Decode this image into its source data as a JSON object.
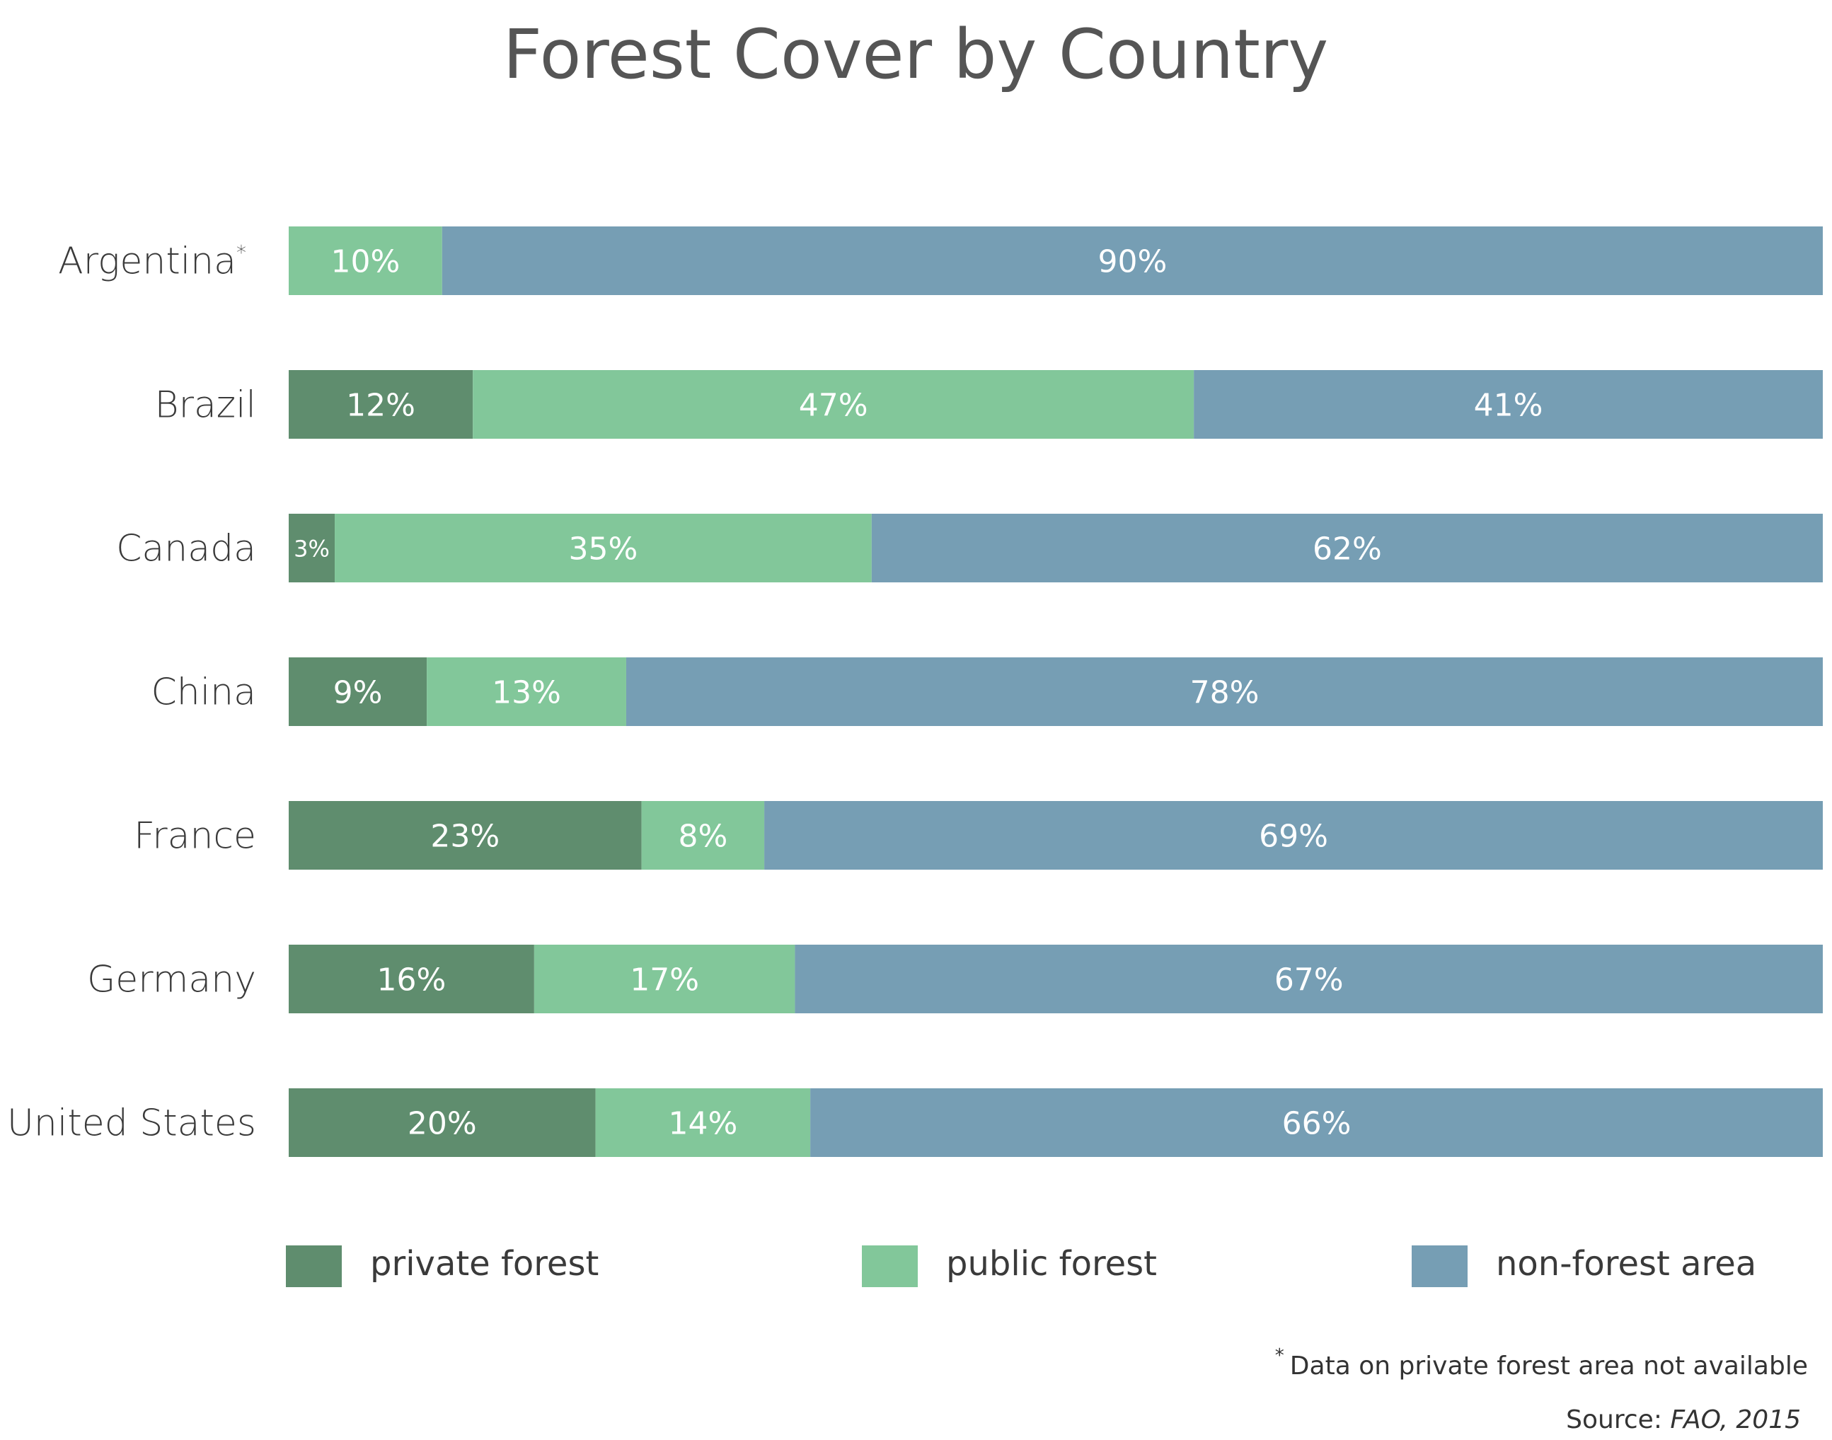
{
  "chart_data": {
    "type": "bar",
    "orientation": "horizontal",
    "stacked": true,
    "title": "Forest Cover by Country",
    "categories": [
      "Argentina",
      "Brazil",
      "Canada",
      "China",
      "France",
      "Germany",
      "United States"
    ],
    "category_notes": [
      "*",
      "",
      "",
      "",
      "",
      "",
      ""
    ],
    "series": [
      {
        "name": "private forest",
        "color": "#5f8d6e",
        "values": [
          null,
          12,
          3,
          9,
          23,
          16,
          20
        ],
        "labels": [
          "",
          "12%",
          "3%",
          "9%",
          "23%",
          "16%",
          "20%"
        ]
      },
      {
        "name": "public forest",
        "color": "#82c79a",
        "values": [
          10,
          47,
          35,
          13,
          8,
          17,
          14
        ],
        "labels": [
          "10%",
          "47%",
          "35%",
          "13%",
          "8%",
          "17%",
          "14%"
        ]
      },
      {
        "name": "non-forest area",
        "color": "#769eb4",
        "values": [
          90,
          41,
          62,
          78,
          69,
          67,
          66
        ],
        "labels": [
          "90%",
          "41%",
          "62%",
          "78%",
          "69%",
          "67%",
          "66%"
        ]
      }
    ],
    "xlim": [
      0,
      100
    ],
    "grid": false,
    "legend_position": "bottom",
    "footnote": {
      "star": "*",
      "text": "Data on private forest area not available"
    },
    "source": {
      "label": "Source: ",
      "value": "FAO, 2015"
    }
  }
}
